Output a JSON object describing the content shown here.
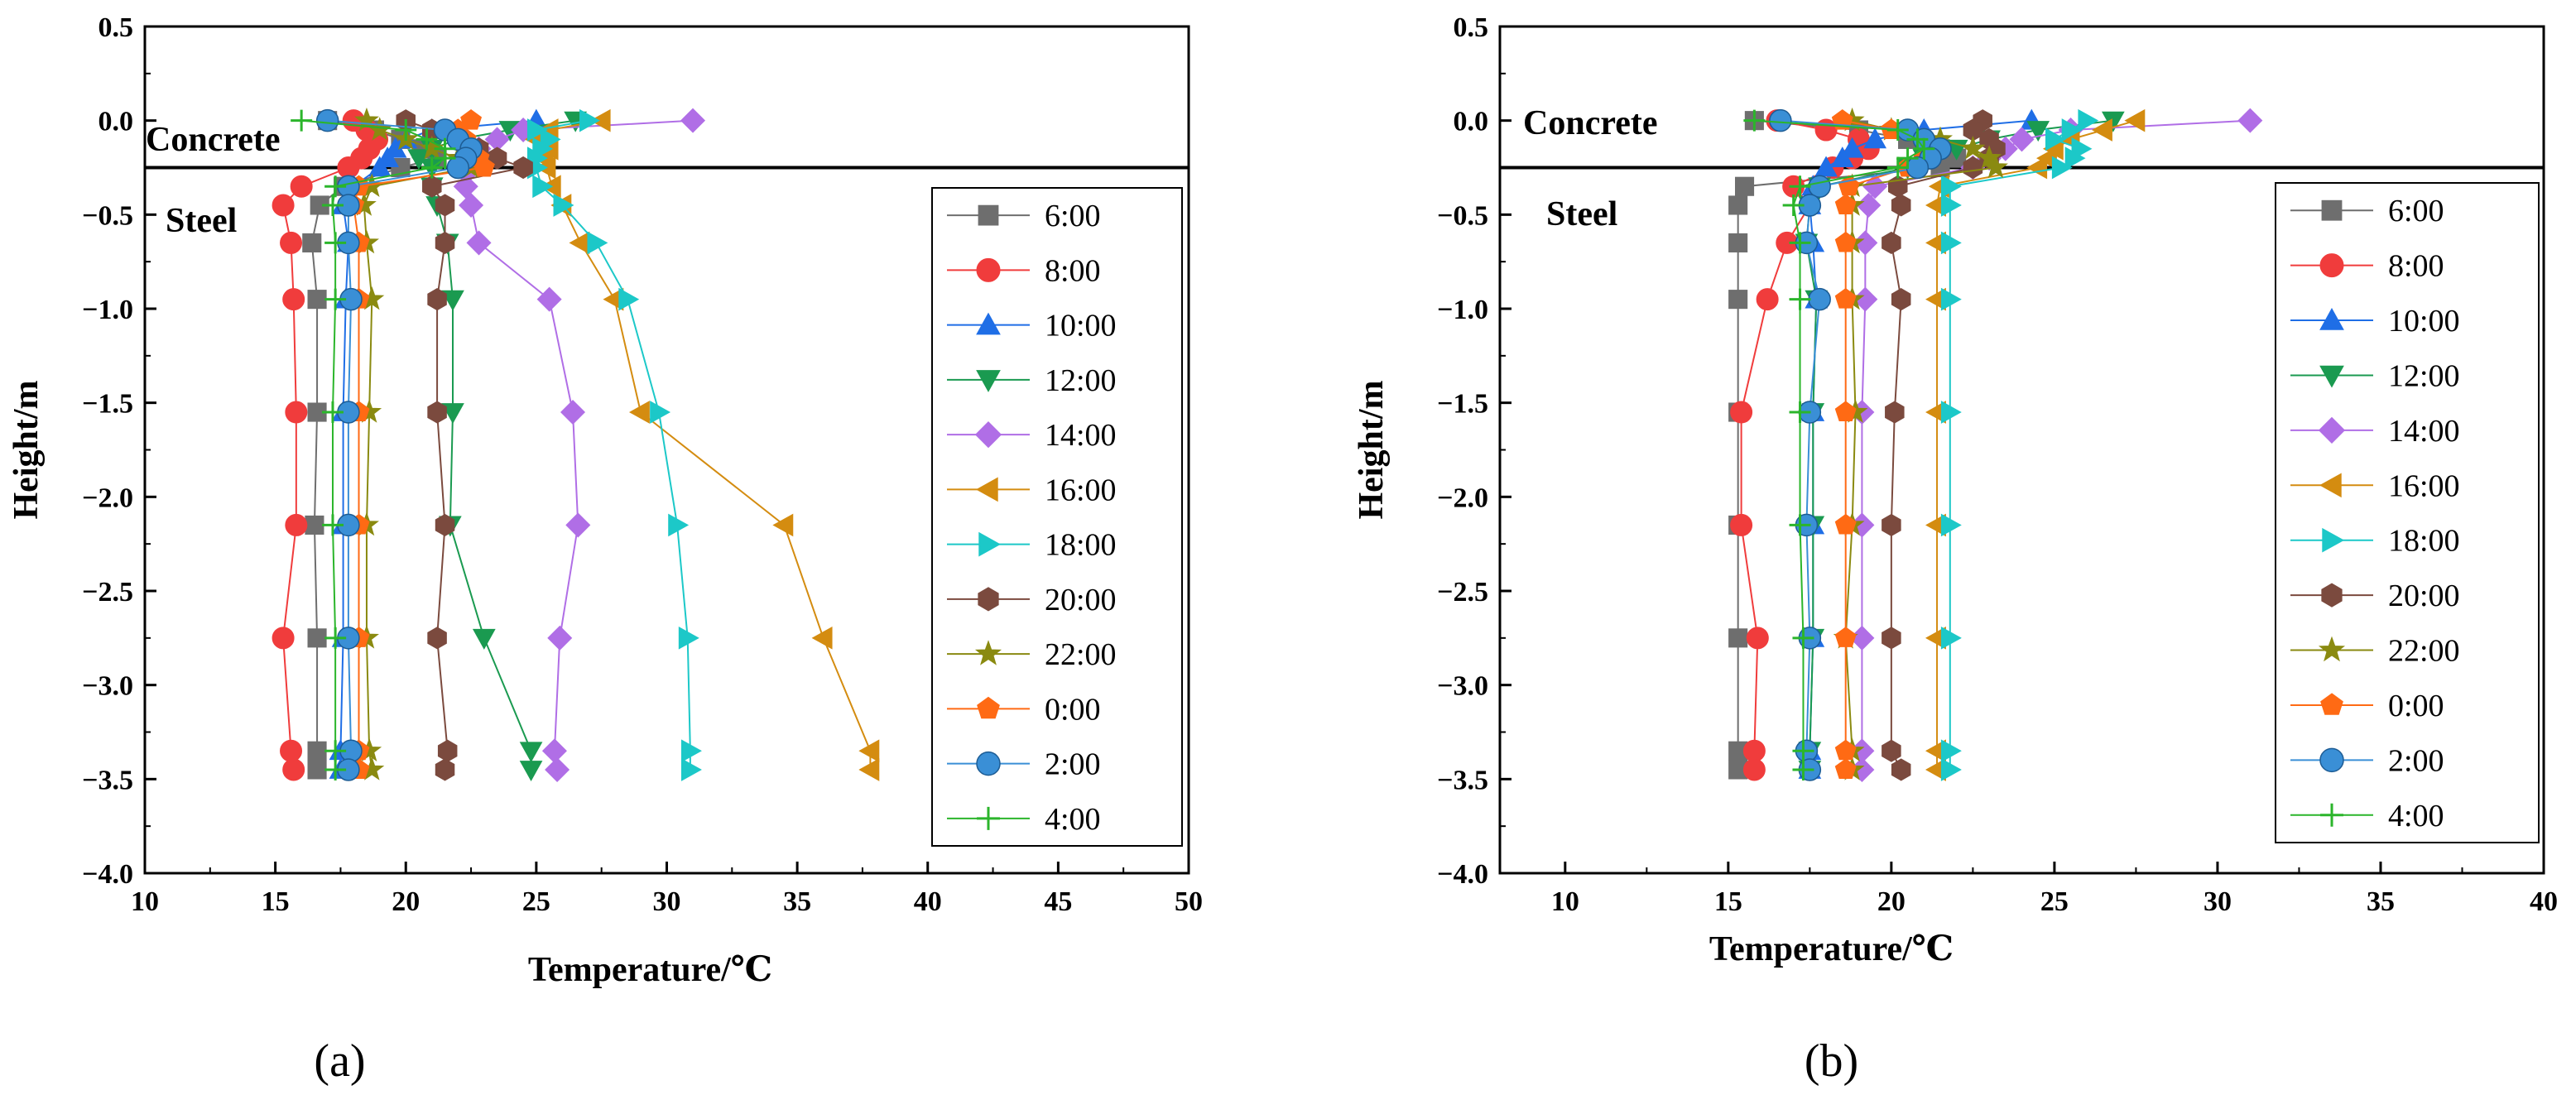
{
  "chart_data": [
    {
      "type": "line",
      "panel_label": "(a)",
      "xlabel": "Temperature/℃",
      "ylabel": "Height/m",
      "xlim": [
        10,
        50
      ],
      "ylim": [
        -4.0,
        0.5
      ],
      "xticks": [
        "10",
        "15",
        "20",
        "25",
        "30",
        "35",
        "40",
        "45",
        "50"
      ],
      "yticks": [
        "0.5",
        "0.0",
        "−0.5",
        "−1.0",
        "−1.5",
        "−2.0",
        "−2.5",
        "−3.0",
        "−3.5",
        "−4.0"
      ],
      "interface_height": -0.25,
      "region_labels": {
        "upper": "Concrete",
        "lower": "Steel"
      },
      "legend_position": "right",
      "heights": [
        0.0,
        -0.05,
        -0.1,
        -0.15,
        -0.2,
        -0.25,
        -0.35,
        -0.45,
        -0.65,
        -0.95,
        -1.55,
        -2.15,
        -2.75,
        -3.35,
        -3.45
      ],
      "series": [
        {
          "name": "6:00",
          "marker": "square",
          "color": "#6e6e6e",
          "values": [
            17.0,
            18.8,
            19.8,
            20.6,
            21.2,
            19.8,
            17.6,
            16.7,
            16.4,
            16.6,
            16.6,
            16.5,
            16.6,
            16.6,
            16.6
          ]
        },
        {
          "name": "8:00",
          "marker": "circle",
          "color": "#f03c3c",
          "values": [
            18.0,
            18.5,
            18.9,
            18.6,
            18.3,
            17.8,
            16.0,
            15.3,
            15.6,
            15.7,
            15.8,
            15.8,
            15.3,
            15.6,
            15.7
          ]
        },
        {
          "name": "10:00",
          "marker": "triangle",
          "color": "#1f6ee6",
          "values": [
            25.0,
            21.0,
            20.0,
            19.6,
            19.3,
            19.0,
            18.0,
            17.6,
            17.8,
            17.7,
            17.6,
            17.6,
            17.6,
            17.5,
            17.5
          ]
        },
        {
          "name": "12:00",
          "marker": "tri_down",
          "color": "#1a9a50",
          "values": [
            26.5,
            24.0,
            22.0,
            21.0,
            20.5,
            21.0,
            21.0,
            21.2,
            21.6,
            21.8,
            21.8,
            21.7,
            23.0,
            24.8,
            24.8
          ]
        },
        {
          "name": "14:00",
          "marker": "diamond",
          "color": "#b06ee6",
          "values": [
            31.0,
            24.5,
            23.5,
            22.8,
            22.5,
            22.5,
            22.3,
            22.5,
            22.8,
            25.5,
            26.4,
            26.6,
            25.9,
            25.7,
            25.8
          ]
        },
        {
          "name": "16:00",
          "marker": "tri_left",
          "color": "#d48c10",
          "values": [
            27.5,
            25.5,
            25.0,
            25.5,
            25.3,
            25.4,
            25.6,
            26.0,
            26.7,
            28.0,
            29.0,
            34.5,
            36.0,
            37.8,
            37.8
          ]
        },
        {
          "name": "18:00",
          "marker": "tri_right",
          "color": "#1cc8c8",
          "values": [
            27.0,
            25.0,
            25.5,
            25.2,
            25.0,
            25.0,
            25.2,
            26.0,
            27.3,
            28.5,
            29.7,
            30.4,
            30.8,
            30.9,
            30.9
          ]
        },
        {
          "name": "20:00",
          "marker": "hexagon",
          "color": "#7b4a3e",
          "values": [
            20.0,
            21.0,
            22.0,
            22.8,
            23.5,
            24.5,
            21.0,
            21.5,
            21.5,
            21.2,
            21.2,
            21.5,
            21.2,
            21.6,
            21.5
          ]
        },
        {
          "name": "22:00",
          "marker": "star",
          "color": "#8a8a10",
          "values": [
            18.5,
            19.0,
            20.0,
            21.0,
            22.0,
            22.5,
            18.7,
            18.4,
            18.5,
            18.7,
            18.6,
            18.5,
            18.5,
            18.6,
            18.7
          ]
        },
        {
          "name": "0:00",
          "marker": "pentagon",
          "color": "#ff6a14",
          "values": [
            22.5,
            22.0,
            22.3,
            22.5,
            22.8,
            23.0,
            18.2,
            18.0,
            18.2,
            18.2,
            18.2,
            18.2,
            18.2,
            18.2,
            18.2
          ]
        },
        {
          "name": "2:00",
          "marker": "sphere",
          "color": "#3a8fd6",
          "values": [
            17.0,
            21.5,
            22.0,
            22.5,
            22.3,
            22.0,
            17.8,
            17.8,
            17.8,
            17.9,
            17.8,
            17.8,
            17.8,
            17.9,
            17.8
          ]
        },
        {
          "name": "4:00",
          "marker": "plus",
          "color": "#2bb52b",
          "values": [
            16.0,
            20.0,
            20.8,
            21.5,
            21.5,
            21.0,
            17.3,
            17.2,
            17.3,
            17.3,
            17.2,
            17.2,
            17.3,
            17.3,
            17.3
          ]
        }
      ]
    },
    {
      "type": "line",
      "panel_label": "(b)",
      "xlabel": "Temperature/℃",
      "ylabel": "Height/m",
      "xlim": [
        8,
        40
      ],
      "ylim": [
        -4.0,
        0.5
      ],
      "xticks": [
        "10",
        "15",
        "20",
        "25",
        "30",
        "35",
        "40"
      ],
      "yticks": [
        "0.5",
        "0.0",
        "−0.5",
        "−1.0",
        "−1.5",
        "−2.0",
        "−2.5",
        "−3.0",
        "−3.5",
        "−4.0"
      ],
      "interface_height": -0.25,
      "region_labels": {
        "upper": "Concrete",
        "lower": "Steel"
      },
      "legend_position": "right",
      "heights": [
        0.0,
        -0.05,
        -0.1,
        -0.15,
        -0.2,
        -0.25,
        -0.35,
        -0.45,
        -0.65,
        -0.95,
        -1.55,
        -2.15,
        -2.75,
        -3.35,
        -3.45
      ],
      "series": [
        {
          "name": "6:00",
          "marker": "square",
          "color": "#6e6e6e",
          "values": [
            15.8,
            19.0,
            20.5,
            21.5,
            22.0,
            21.5,
            15.5,
            15.3,
            15.3,
            15.3,
            15.3,
            15.3,
            15.3,
            15.3,
            15.3
          ]
        },
        {
          "name": "8:00",
          "marker": "circle",
          "color": "#f03c3c",
          "values": [
            16.5,
            18.0,
            19.0,
            19.3,
            18.8,
            18.2,
            17.0,
            17.5,
            16.8,
            16.2,
            15.4,
            15.4,
            15.9,
            15.8,
            15.8
          ]
        },
        {
          "name": "10:00",
          "marker": "triangle",
          "color": "#1f6ee6",
          "values": [
            24.3,
            21.0,
            19.5,
            18.8,
            18.5,
            18.0,
            17.6,
            17.5,
            17.6,
            17.7,
            17.6,
            17.6,
            17.6,
            17.5,
            17.5
          ]
        },
        {
          "name": "12:00",
          "marker": "tri_down",
          "color": "#1a9a50",
          "values": [
            26.8,
            24.5,
            23.0,
            22.0,
            21.0,
            20.5,
            17.8,
            17.5,
            17.4,
            17.7,
            17.6,
            17.6,
            17.6,
            17.5,
            17.5
          ]
        },
        {
          "name": "14:00",
          "marker": "diamond",
          "color": "#b06ee6",
          "values": [
            31.0,
            25.5,
            24.0,
            23.5,
            23.0,
            22.5,
            19.5,
            19.3,
            19.2,
            19.2,
            19.1,
            19.1,
            19.1,
            19.1,
            19.1
          ]
        },
        {
          "name": "16:00",
          "marker": "tri_left",
          "color": "#d48c10",
          "values": [
            27.5,
            26.5,
            25.5,
            25.0,
            24.8,
            24.5,
            21.5,
            21.4,
            21.4,
            21.4,
            21.4,
            21.4,
            21.4,
            21.4,
            21.4
          ]
        },
        {
          "name": "18:00",
          "marker": "tri_right",
          "color": "#1cc8c8",
          "values": [
            26.0,
            25.5,
            25.0,
            25.8,
            25.6,
            25.2,
            21.8,
            21.8,
            21.8,
            21.8,
            21.8,
            21.8,
            21.8,
            21.8,
            21.8
          ]
        },
        {
          "name": "20:00",
          "marker": "hexagon",
          "color": "#7b4a3e",
          "values": [
            22.8,
            22.5,
            23.0,
            23.2,
            23.0,
            22.5,
            20.2,
            20.3,
            20.0,
            20.3,
            20.1,
            20.0,
            20.0,
            20.0,
            20.3
          ]
        },
        {
          "name": "22:00",
          "marker": "star",
          "color": "#8a8a10",
          "values": [
            18.8,
            20.0,
            21.5,
            22.5,
            23.0,
            23.2,
            18.8,
            18.8,
            18.8,
            18.8,
            18.9,
            18.8,
            18.6,
            18.8,
            18.8
          ]
        },
        {
          "name": "0:00",
          "marker": "pentagon",
          "color": "#ff6a14",
          "values": [
            18.5,
            20.0,
            21.0,
            21.5,
            21.0,
            20.5,
            18.7,
            18.6,
            18.6,
            18.6,
            18.6,
            18.6,
            18.6,
            18.6,
            18.6
          ]
        },
        {
          "name": "2:00",
          "marker": "sphere",
          "color": "#3a8fd6",
          "values": [
            16.6,
            20.5,
            21.0,
            21.5,
            21.2,
            20.8,
            17.8,
            17.5,
            17.4,
            17.8,
            17.5,
            17.4,
            17.5,
            17.4,
            17.5
          ]
        },
        {
          "name": "4:00",
          "marker": "plus",
          "color": "#2bb52b",
          "values": [
            15.8,
            20.2,
            20.8,
            21.0,
            20.5,
            20.2,
            17.2,
            17.0,
            17.2,
            17.2,
            17.2,
            17.2,
            17.3,
            17.3,
            17.3
          ]
        }
      ]
    }
  ]
}
